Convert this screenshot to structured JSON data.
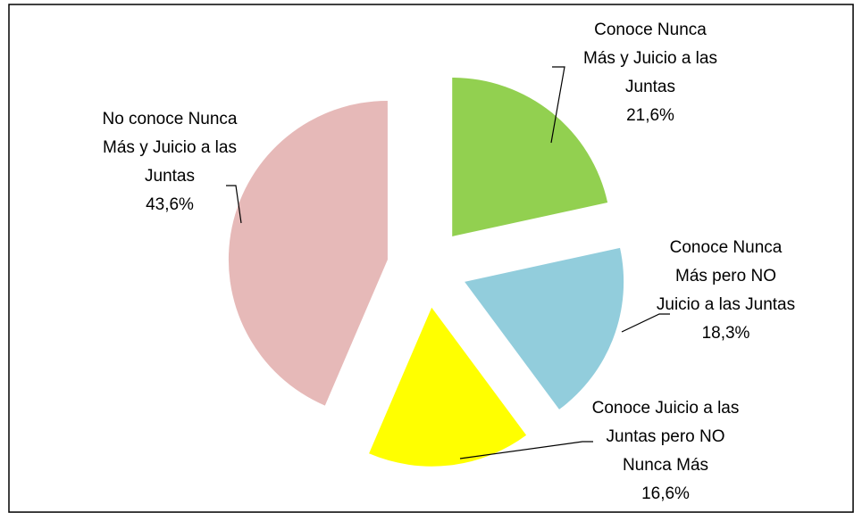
{
  "chart_data": {
    "type": "pie",
    "categories": [
      "Conoce Nunca Más y Juicio a las Juntas",
      "Conoce Nunca Más pero NO Juicio a las Juntas",
      "Conoce Juicio a las Juntas pero NO Nunca Más",
      "No conoce Nunca Más y Juicio a las Juntas"
    ],
    "values": [
      21.6,
      18.3,
      16.6,
      43.6
    ],
    "value_labels": [
      "21,6%",
      "18,3%",
      "16,6%",
      "43,6%"
    ],
    "colors": [
      "#92d050",
      "#92cddc",
      "#ffff00",
      "#e6b9b8"
    ]
  }
}
